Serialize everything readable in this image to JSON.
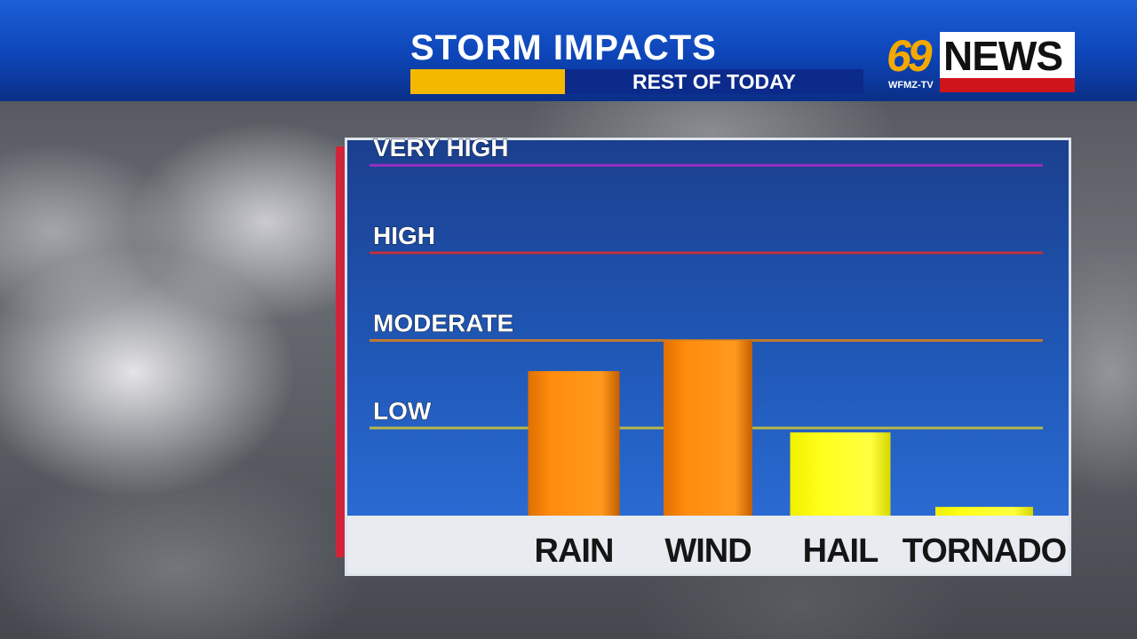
{
  "header": {
    "title": "STORM IMPACTS",
    "subtitle": "REST OF TODAY"
  },
  "logo": {
    "number": "69",
    "word": "NEWS",
    "callsign": "WFMZ-TV"
  },
  "colors": {
    "header_blue": "#0d45b8",
    "gold": "#f5b800",
    "orange": "#ff8c0d",
    "yellow": "#ffff1a",
    "logo_red": "#d0141c"
  },
  "chart_data": {
    "type": "bar",
    "categories": [
      "RAIN",
      "WIND",
      "HAIL",
      "TORNADO"
    ],
    "values": [
      1.65,
      2.0,
      0.95,
      0.1
    ],
    "bar_colors": [
      "#ff8c0d",
      "#ff8c0d",
      "#ffff1a",
      "#ffff1a"
    ],
    "levels": [
      {
        "label": "LOW",
        "value": 1,
        "color": "#b5b54a"
      },
      {
        "label": "MODERATE",
        "value": 2,
        "color": "#c07a2e"
      },
      {
        "label": "HIGH",
        "value": 3,
        "color": "#c0303c"
      },
      {
        "label": "VERY HIGH",
        "value": 4,
        "color": "#9a2ec0"
      }
    ],
    "ylim": [
      0,
      4
    ],
    "grid": true,
    "legend": "none"
  }
}
